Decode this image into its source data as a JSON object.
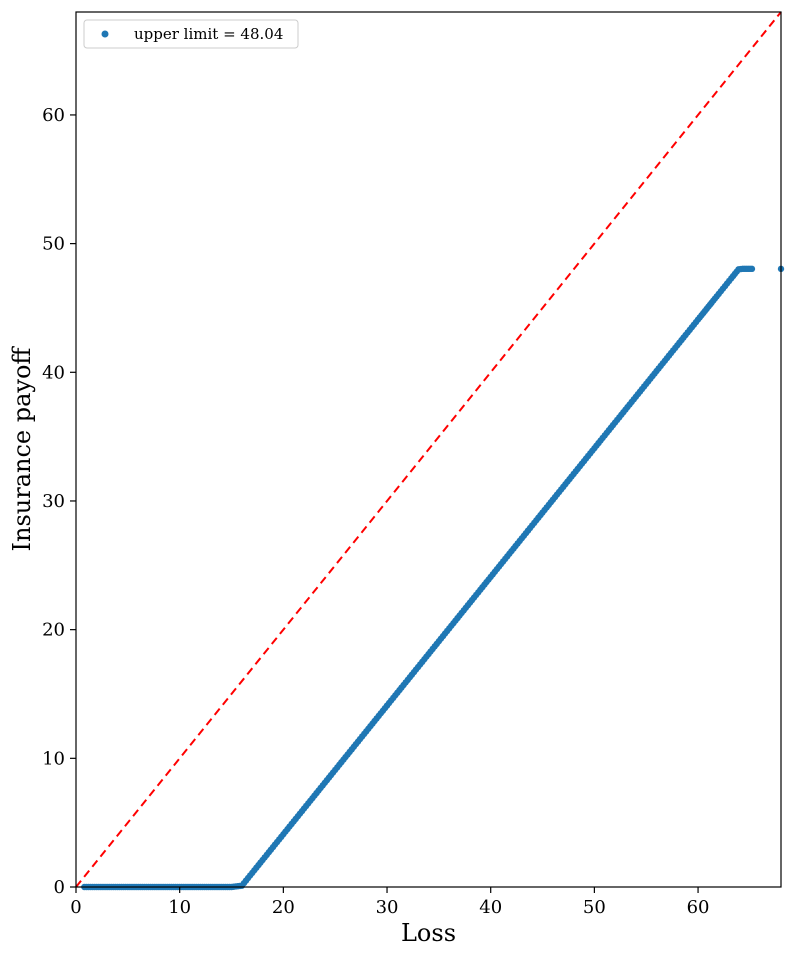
{
  "chart_data": {
    "type": "scatter",
    "title": "",
    "xlabel": "Loss",
    "ylabel": "Insurance payoff",
    "xlim": [
      0,
      68
    ],
    "ylim": [
      0,
      68
    ],
    "xticks": [
      0,
      10,
      20,
      30,
      40,
      50,
      60
    ],
    "yticks": [
      0,
      10,
      20,
      30,
      40,
      50,
      60
    ],
    "grid": false,
    "legend": {
      "location": "top-left",
      "entries": [
        "upper limit = 48.04"
      ]
    },
    "series": [
      {
        "name": "upper limit = 48.04",
        "color": "#1f77b4",
        "marker": "circle",
        "x": [
          0.8,
          1.6,
          2.4,
          3.0,
          3.6,
          4.2,
          4.8,
          5.4,
          6.2,
          7.0,
          8.0,
          9.0,
          10.0,
          11.0,
          12.0,
          13.0,
          14.0,
          15.0,
          16.0,
          17.0,
          18.0,
          20.0,
          22.0,
          24.0,
          26.0,
          28.0,
          30.0,
          32.0,
          34.0,
          36.0,
          38.0,
          40.0,
          42.0,
          44.0,
          46.0,
          48.0,
          50.0,
          52.0,
          54.0,
          56.0,
          58.0,
          59.0,
          60.0,
          60.5,
          61.0,
          61.3,
          61.8,
          62.8,
          63.2,
          63.9,
          64.3,
          65.2,
          68.0
        ],
        "y": [
          0,
          0,
          0,
          0,
          0,
          0,
          0,
          0,
          0,
          0,
          0,
          0,
          0,
          0,
          0,
          0,
          0,
          0,
          0.1,
          1.1,
          2.1,
          4.1,
          6.1,
          8.1,
          10.1,
          12.1,
          14.1,
          16.1,
          18.1,
          20.1,
          22.1,
          24.1,
          26.1,
          28.1,
          30.1,
          32.1,
          34.1,
          36.1,
          38.1,
          40.1,
          42.1,
          43.1,
          44.1,
          44.6,
          45.1,
          45.4,
          45.9,
          46.9,
          47.3,
          48.0,
          48.04,
          48.04,
          48.04
        ]
      }
    ],
    "reference_line": {
      "style": "dashed",
      "color": "#ff0000",
      "x": [
        0,
        68
      ],
      "y": [
        0,
        68
      ]
    }
  }
}
